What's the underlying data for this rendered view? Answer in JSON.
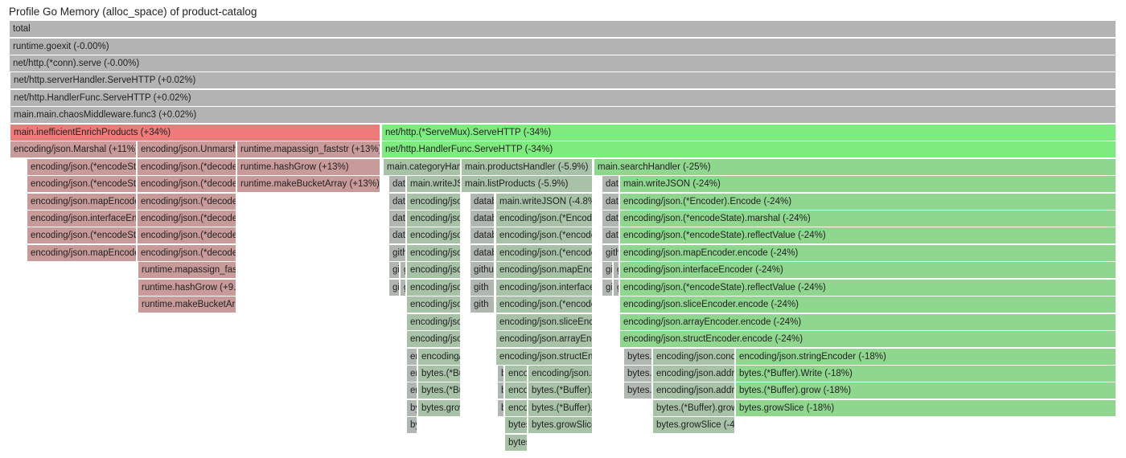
{
  "title": "Profile Go Memory (alloc_space) of product-catalog",
  "rows": [
    [
      "total"
    ],
    [
      "runtime.goexit (-0.00%)"
    ],
    [
      "net/http.(*conn).serve (-0.00%)"
    ],
    [
      "net/http.serverHandler.ServeHTTP (+0.02%)"
    ],
    [
      "net/http.HandlerFunc.ServeHTTP (+0.02%)"
    ],
    [
      "main.main.chaosMiddleware.func3 (+0.02%)"
    ],
    [
      "main.inefficientEnrichProducts (+34%)",
      "net/http.(*ServeMux).ServeHTTP (-34%)"
    ],
    [
      "encoding/json.Marshal (+11%)",
      "encoding/json.Unmarsh",
      "runtime.mapassign_faststr (+13%)",
      "net/http.HandlerFunc.ServeHTTP (-34%)"
    ],
    [
      "encoding/json.(*encodeSta",
      "encoding/json.(*decode",
      "runtime.hashGrow (+13%)",
      "main.categoryHan",
      "main.productsHandler (-5.9%)",
      "main.searchHandler (-25%)"
    ],
    [
      "encoding/json.(*encodeSta",
      "encoding/json.(*decode",
      "runtime.makeBucketArray (+13%)",
      "dat",
      "main.writeJS",
      "main.listProducts (-5.9%)",
      "dat",
      "main.writeJSON (-24%)"
    ],
    [
      "encoding/json.mapEncode",
      "encoding/json.(*decode",
      "dat",
      "encoding/jso",
      "datab",
      "main.writeJSON (-4.8%)",
      "dat",
      "encoding/json.(*Encoder).Encode (-24%)"
    ],
    [
      "encoding/json.interfaceEn",
      "encoding/json.(*decode",
      "dat",
      "encoding/jso",
      "datab",
      "encoding/json.(*Encode",
      "dat",
      "encoding/json.(*encodeState).marshal (-24%)"
    ],
    [
      "encoding/json.(*encodeSt",
      "encoding/json.(*decode",
      "dat",
      "encoding/jso",
      "datab",
      "encoding/json.(*encode",
      "dat",
      "encoding/json.(*encodeState).reflectValue (-24%)"
    ],
    [
      "encoding/json.mapEncode",
      "encoding/json.(*decode",
      "gith",
      "encoding/jso",
      "datab",
      "encoding/json.(*encode",
      "gith",
      "encoding/json.mapEncoder.encode (-24%)"
    ],
    [
      "runtime.mapassign_fast",
      "gi",
      "g",
      "encoding/jso",
      "githu",
      "encoding/json.mapEnco",
      "gi",
      "g",
      "encoding/json.interfaceEncoder (-24%)"
    ],
    [
      "runtime.hashGrow (+9.0",
      "gi",
      "g",
      "encoding/jso",
      "gith",
      "encoding/json.interface",
      "gi",
      "g",
      "encoding/json.(*encodeState).reflectValue (-24%)"
    ],
    [
      "runtime.makeBucketArr",
      "encoding/jso",
      "gith",
      "encoding/json.(*encode",
      "encoding/json.sliceEncoder.encode (-24%)"
    ],
    [
      "encoding/jso",
      "encoding/json.sliceEnc",
      "encoding/json.arrayEncoder.encode (-24%)"
    ],
    [
      "encoding/jso",
      "encoding/json.arrayEnc",
      "encoding/json.structEncoder.encode (-24%)"
    ],
    [
      "en",
      "encoding/",
      "encoding/json.structEnc",
      "bytes.(",
      "encoding/json.cond",
      "encoding/json.stringEncoder (-18%)"
    ],
    [
      "en",
      "bytes.(*Bu",
      "b",
      "enco",
      "encoding/json.s",
      "bytes.(",
      "encoding/json.addrl",
      "bytes.(*Buffer).Write (-18%)"
    ],
    [
      "en",
      "bytes.(*Bu",
      "b",
      "enco",
      "bytes.(*Buffer).",
      "bytes.(",
      "encoding/json.addrl",
      "bytes.(*Buffer).grow (-18%)"
    ],
    [
      "by",
      "bytes.grow",
      "b",
      "enco",
      "bytes.(*Buffer).",
      "bytes.(*Buffer).grow",
      "bytes.growSlice (-18%)"
    ],
    [
      "by",
      "bytes",
      "bytes.growSlice",
      "bytes.growSlice (-4.1"
    ],
    [
      "bytes"
    ]
  ]
}
